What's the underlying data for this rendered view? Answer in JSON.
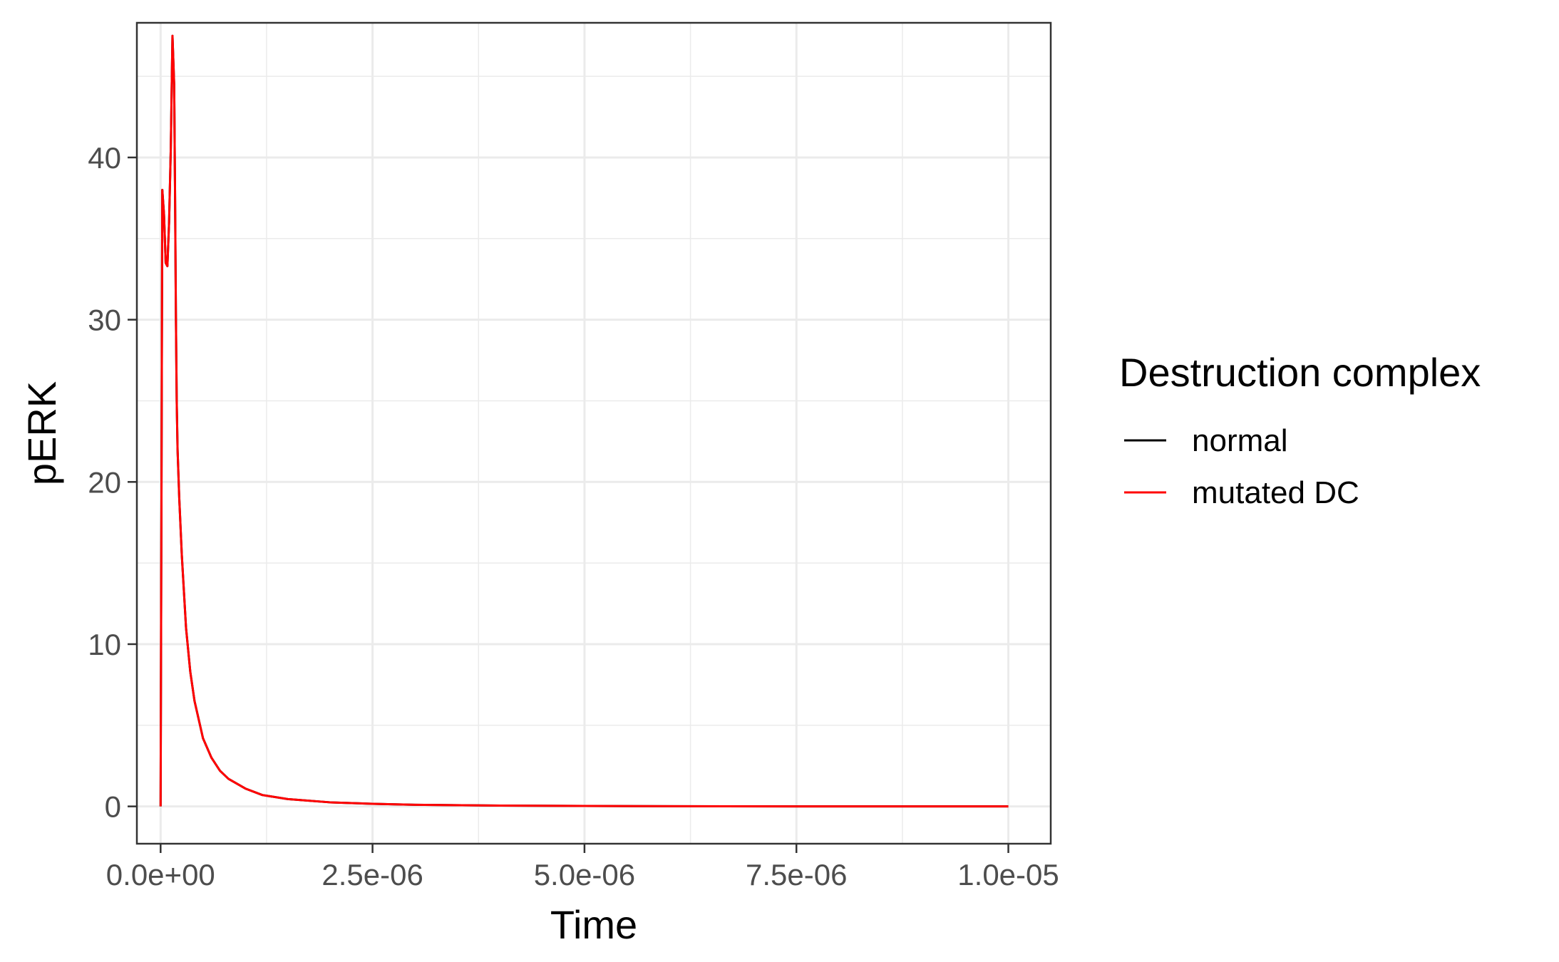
{
  "chart_data": {
    "type": "line",
    "xlabel": "Time",
    "ylabel": "pERK",
    "xlim": [
      -2.8e-07,
      1.05e-05
    ],
    "ylim": [
      -2.3,
      48.3
    ],
    "x_ticks": [
      0,
      2.5e-06,
      5e-06,
      7.5e-06,
      1e-05
    ],
    "x_tick_labels": [
      "0.0e+00",
      "2.5e-06",
      "5.0e-06",
      "7.5e-06",
      "1.0e-05"
    ],
    "y_ticks": [
      0,
      10,
      20,
      30,
      40
    ],
    "y_tick_labels": [
      "0",
      "10",
      "20",
      "30",
      "40"
    ],
    "grid": true,
    "legend": {
      "title": "Destruction complex",
      "position": "right"
    },
    "series": [
      {
        "name": "normal",
        "color": "#000000",
        "x": [
          0,
          1e-08,
          2e-08,
          4e-08,
          6e-08,
          8e-08,
          1e-07,
          1.2e-07,
          1.4e-07,
          1.6e-07,
          1.7e-07,
          1.8e-07,
          1.9e-07,
          2e-07,
          2.2e-07,
          2.5e-07,
          3e-07,
          3.5e-07,
          4e-07,
          5e-07,
          6e-07,
          7e-07,
          8e-07,
          1e-06,
          1.2e-06,
          1.5e-06,
          2e-06,
          2.5e-06,
          3e-06,
          4e-06,
          5e-06,
          6e-06,
          7.5e-06,
          1e-05
        ],
        "y": [
          0,
          19,
          38,
          36.5,
          33.5,
          33.3,
          36,
          40.5,
          47.5,
          44.5,
          38,
          30.5,
          25,
          22,
          19,
          15.5,
          11,
          8.3,
          6.5,
          4.2,
          3.0,
          2.2,
          1.7,
          1.1,
          0.7,
          0.45,
          0.25,
          0.16,
          0.1,
          0.05,
          0.03,
          0.01,
          0.0,
          0.0
        ]
      },
      {
        "name": "mutated DC",
        "color": "#ff0000",
        "x": [
          0,
          1e-08,
          2e-08,
          4e-08,
          6e-08,
          8e-08,
          1e-07,
          1.2e-07,
          1.4e-07,
          1.6e-07,
          1.7e-07,
          1.8e-07,
          1.9e-07,
          2e-07,
          2.2e-07,
          2.5e-07,
          3e-07,
          3.5e-07,
          4e-07,
          5e-07,
          6e-07,
          7e-07,
          8e-07,
          1e-06,
          1.2e-06,
          1.5e-06,
          2e-06,
          2.5e-06,
          3e-06,
          4e-06,
          5e-06,
          6e-06,
          7.5e-06,
          1e-05
        ],
        "y": [
          0,
          19,
          38,
          36.5,
          33.5,
          33.3,
          36,
          40.5,
          47.5,
          44.5,
          38,
          30.5,
          25,
          22,
          19,
          15.5,
          11,
          8.3,
          6.5,
          4.2,
          3.0,
          2.2,
          1.7,
          1.1,
          0.7,
          0.45,
          0.25,
          0.16,
          0.1,
          0.05,
          0.03,
          0.01,
          0.0,
          0.0
        ]
      }
    ]
  }
}
